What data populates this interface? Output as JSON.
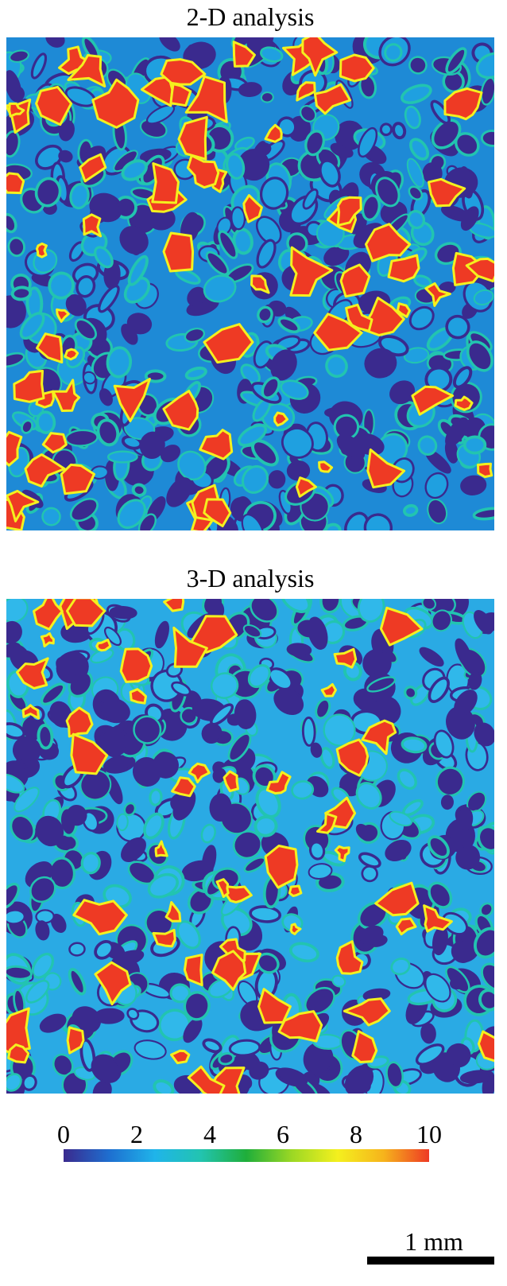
{
  "panels": [
    {
      "title": "2-D analysis"
    },
    {
      "title": "3-D analysis"
    }
  ],
  "colorbar": {
    "lim": [
      0,
      10
    ],
    "ticks": [
      0,
      2,
      4,
      6,
      8,
      10
    ],
    "colors": [
      "#3a2a8e",
      "#1e6fd0",
      "#1fb4ea",
      "#22c4b0",
      "#1fae3a",
      "#9cd824",
      "#f4f01e",
      "#f6b41c",
      "#ee3a24"
    ]
  },
  "scale_bar": {
    "label": "1 mm"
  }
}
